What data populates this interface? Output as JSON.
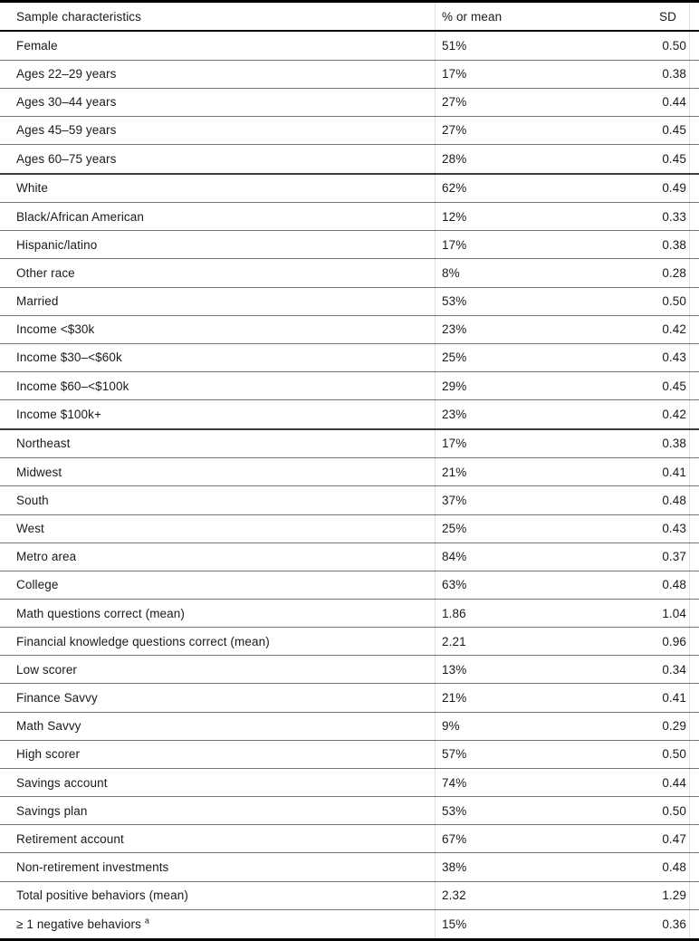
{
  "table": {
    "columns": [
      {
        "label": "Sample characteristics"
      },
      {
        "label": "% or mean"
      },
      {
        "label": "SD"
      }
    ],
    "rows": [
      {
        "label": "Female",
        "value": "51%",
        "sd": "0.50"
      },
      {
        "label": "Ages 22–29 years",
        "value": "17%",
        "sd": "0.38"
      },
      {
        "label": "Ages 30–44 years",
        "value": "27%",
        "sd": "0.44"
      },
      {
        "label": "Ages 45–59 years",
        "value": "27%",
        "sd": "0.45"
      },
      {
        "label": "Ages 60–75 years",
        "value": "28%",
        "sd": "0.45",
        "group_end": true
      },
      {
        "label": "White",
        "value": "62%",
        "sd": "0.49"
      },
      {
        "label": "Black/African American",
        "value": "12%",
        "sd": "0.33"
      },
      {
        "label": "Hispanic/latino",
        "value": "17%",
        "sd": "0.38"
      },
      {
        "label": "Other race",
        "value": "8%",
        "sd": "0.28"
      },
      {
        "label": "Married",
        "value": "53%",
        "sd": "0.50"
      },
      {
        "label": "Income <$30k",
        "value": "23%",
        "sd": "0.42"
      },
      {
        "label": "Income $30–<$60k",
        "value": "25%",
        "sd": "0.43"
      },
      {
        "label": "Income $60–<$100k",
        "value": "29%",
        "sd": "0.45"
      },
      {
        "label": "Income $100k+",
        "value": "23%",
        "sd": "0.42",
        "group_end": true
      },
      {
        "label": "Northeast",
        "value": "17%",
        "sd": "0.38"
      },
      {
        "label": "Midwest",
        "value": "21%",
        "sd": "0.41"
      },
      {
        "label": "South",
        "value": "37%",
        "sd": "0.48"
      },
      {
        "label": "West",
        "value": "25%",
        "sd": "0.43"
      },
      {
        "label": "Metro area",
        "value": "84%",
        "sd": "0.37"
      },
      {
        "label": "College",
        "value": "63%",
        "sd": "0.48"
      },
      {
        "label": "Math questions correct (mean)",
        "value": "1.86",
        "sd": "1.04"
      },
      {
        "label": "Financial knowledge questions correct (mean)",
        "value": "2.21",
        "sd": "0.96"
      },
      {
        "label": "Low scorer",
        "value": "13%",
        "sd": "0.34"
      },
      {
        "label": "Finance Savvy",
        "value": "21%",
        "sd": "0.41"
      },
      {
        "label": "Math Savvy",
        "value": "9%",
        "sd": "0.29"
      },
      {
        "label": "High scorer",
        "value": "57%",
        "sd": "0.50"
      },
      {
        "label": "Savings account",
        "value": "74%",
        "sd": "0.44"
      },
      {
        "label": "Savings plan",
        "value": "53%",
        "sd": "0.50"
      },
      {
        "label": "Retirement account",
        "value": "67%",
        "sd": "0.47"
      },
      {
        "label": "Non-retirement investments",
        "value": "38%",
        "sd": "0.48"
      },
      {
        "label": "Total positive behaviors (mean)",
        "value": "2.32",
        "sd": "1.29"
      },
      {
        "label": "≥ 1 negative behaviors",
        "sup": "a",
        "value": "15%",
        "sd": "0.36"
      }
    ]
  },
  "colors": {
    "rule_heavy": "#000000",
    "rule_row": "#757575",
    "rule_group": "#3c3c3c",
    "text": "#1a1a1a",
    "background": "#ffffff"
  }
}
